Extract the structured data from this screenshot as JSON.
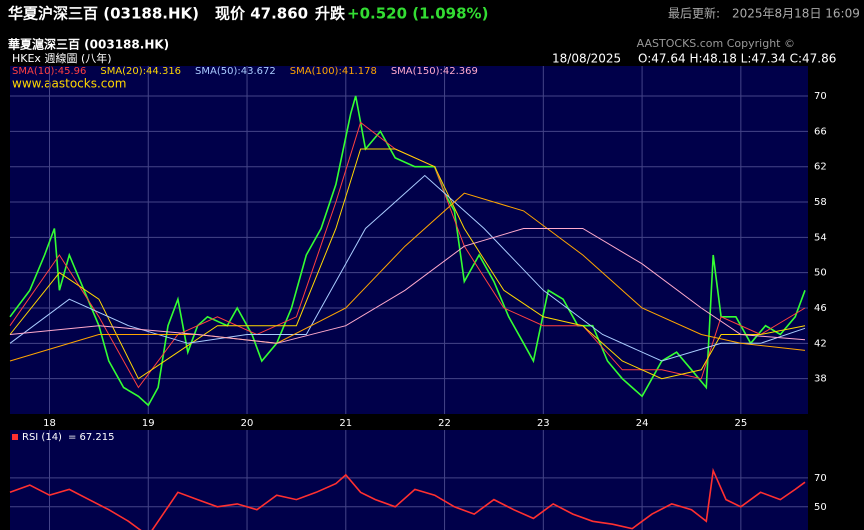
{
  "header": {
    "title": "华夏沪深三百 (03188.HK)",
    "price": "现价 47.860",
    "change_label": "升跌",
    "change": "+0.520 (1.098%)",
    "updated_label": "最后更新:",
    "updated": "2025年8月18日 16:09"
  },
  "info": {
    "name": "華夏滬深三百 (003188.HK)",
    "subtitle": "HKEx 週線圖 (八年)",
    "copyright": "AASTOCKS.com Copyright ©",
    "date": "18/08/2025",
    "ohlc": "O:47.64 H:48.18 L:47.34 C:47.86",
    "site": "www.aastocks.com"
  },
  "chart_data": [
    {
      "type": "line",
      "xlim": [
        17.6,
        25.68
      ],
      "ylim": [
        34,
        73.4
      ],
      "xticks": [
        18,
        19,
        20,
        21,
        22,
        23,
        24,
        25
      ],
      "yticks": [
        38,
        42,
        46,
        50,
        54,
        58,
        62,
        66,
        70
      ],
      "grid": true,
      "series": [
        {
          "color": "#33ff33",
          "x": [
            17.6,
            17.8,
            17.95,
            18.05,
            18.1,
            18.2,
            18.35,
            18.5,
            18.6,
            18.75,
            18.9,
            19.0,
            19.1,
            19.2,
            19.3,
            19.4,
            19.5,
            19.6,
            19.8,
            19.9,
            20.05,
            20.15,
            20.3,
            20.45,
            20.6,
            20.75,
            20.9,
            21.05,
            21.1,
            21.2,
            21.35,
            21.5,
            21.7,
            21.9,
            22.0,
            22.1,
            22.2,
            22.35,
            22.5,
            22.65,
            22.8,
            22.9,
            23.05,
            23.2,
            23.35,
            23.5,
            23.65,
            23.8,
            24.0,
            24.05,
            24.2,
            24.35,
            24.5,
            24.65,
            24.72,
            24.8,
            24.95,
            25.1,
            25.25,
            25.4,
            25.55,
            25.65
          ],
          "values": [
            45,
            48,
            52,
            55,
            48,
            52,
            48,
            44,
            40,
            37,
            36,
            35,
            37,
            44,
            47,
            41,
            44,
            45,
            44,
            46,
            43,
            40,
            42,
            46,
            52,
            55,
            60,
            68,
            70,
            64,
            66,
            63,
            62,
            62,
            59,
            57,
            49,
            52,
            49,
            45,
            42,
            40,
            48,
            47,
            44,
            44,
            40,
            38,
            36,
            37,
            40,
            41,
            39,
            37,
            52,
            45,
            45,
            42,
            44,
            43,
            45,
            48
          ]
        },
        {
          "name": "SMA(10):45.96",
          "color": "#ff4040",
          "x": [
            17.6,
            18.1,
            18.5,
            18.9,
            19.3,
            19.7,
            20.1,
            20.5,
            20.9,
            21.15,
            21.5,
            21.9,
            22.2,
            22.6,
            23.0,
            23.4,
            23.8,
            24.2,
            24.6,
            24.8,
            25.2,
            25.65
          ],
          "values": [
            44,
            52,
            45,
            37,
            43,
            45,
            43,
            45,
            58,
            67,
            64,
            62,
            53,
            46,
            44,
            44,
            39,
            39,
            38,
            45,
            43,
            46
          ]
        },
        {
          "name": "SMA(20):44.316",
          "color": "#ffd700",
          "x": [
            17.6,
            18.1,
            18.5,
            18.9,
            19.3,
            19.7,
            20.1,
            20.5,
            20.9,
            21.15,
            21.5,
            21.9,
            22.2,
            22.6,
            23.0,
            23.4,
            23.8,
            24.2,
            24.6,
            24.8,
            25.2,
            25.65
          ],
          "values": [
            43,
            50,
            47,
            38,
            41,
            44,
            44,
            44,
            55,
            64,
            64,
            62,
            55,
            48,
            45,
            44,
            40,
            38,
            39,
            43,
            43,
            44
          ]
        },
        {
          "name": "SMA(50):43.672",
          "color": "#aaccff",
          "x": [
            17.6,
            18.2,
            18.8,
            19.4,
            20.0,
            20.6,
            21.2,
            21.8,
            22.4,
            23.0,
            23.6,
            24.2,
            24.8,
            25.2,
            25.65
          ],
          "values": [
            42,
            47,
            44,
            42,
            43,
            43,
            55,
            61,
            55,
            48,
            43,
            40,
            42,
            42,
            43.7
          ]
        },
        {
          "name": "SMA(100):41.178",
          "color": "#ffa500",
          "x": [
            17.6,
            18.5,
            19.5,
            20.3,
            21.0,
            21.6,
            22.2,
            22.8,
            23.4,
            24.0,
            24.6,
            25.0,
            25.65
          ],
          "values": [
            40,
            43,
            43,
            42,
            46,
            53,
            59,
            57,
            52,
            46,
            43,
            42,
            41.2
          ]
        },
        {
          "name": "SMA(150):42.369",
          "color": "#ffaacc",
          "x": [
            17.6,
            18.5,
            19.5,
            20.3,
            21.0,
            21.6,
            22.2,
            22.8,
            23.4,
            24.0,
            24.6,
            25.0,
            25.65
          ],
          "values": [
            43,
            44,
            43,
            42,
            44,
            48,
            53,
            55,
            55,
            51,
            46,
            43,
            42.4
          ]
        }
      ]
    },
    {
      "type": "line",
      "xlim": [
        17.6,
        25.68
      ],
      "ylim": [
        34,
        103
      ],
      "yticks": [
        50,
        70
      ],
      "grid": true,
      "series": [
        {
          "name": "RSI (14)",
          "value_label": "= 67.215",
          "color": "#ff3030",
          "x": [
            17.6,
            17.8,
            18.0,
            18.2,
            18.4,
            18.6,
            18.8,
            18.9,
            19.0,
            19.15,
            19.3,
            19.5,
            19.7,
            19.9,
            20.1,
            20.3,
            20.5,
            20.7,
            20.9,
            21.0,
            21.15,
            21.3,
            21.5,
            21.7,
            21.9,
            22.1,
            22.3,
            22.5,
            22.7,
            22.9,
            23.1,
            23.3,
            23.5,
            23.7,
            23.9,
            24.1,
            24.3,
            24.5,
            24.65,
            24.72,
            24.85,
            25.0,
            25.2,
            25.4,
            25.55,
            25.65
          ],
          "values": [
            60,
            65,
            58,
            62,
            55,
            48,
            40,
            35,
            30,
            45,
            60,
            55,
            50,
            52,
            48,
            58,
            55,
            60,
            66,
            72,
            60,
            55,
            50,
            62,
            58,
            50,
            45,
            55,
            48,
            42,
            52,
            45,
            40,
            38,
            35,
            45,
            52,
            48,
            40,
            75,
            55,
            50,
            60,
            55,
            62,
            67
          ]
        }
      ]
    }
  ]
}
